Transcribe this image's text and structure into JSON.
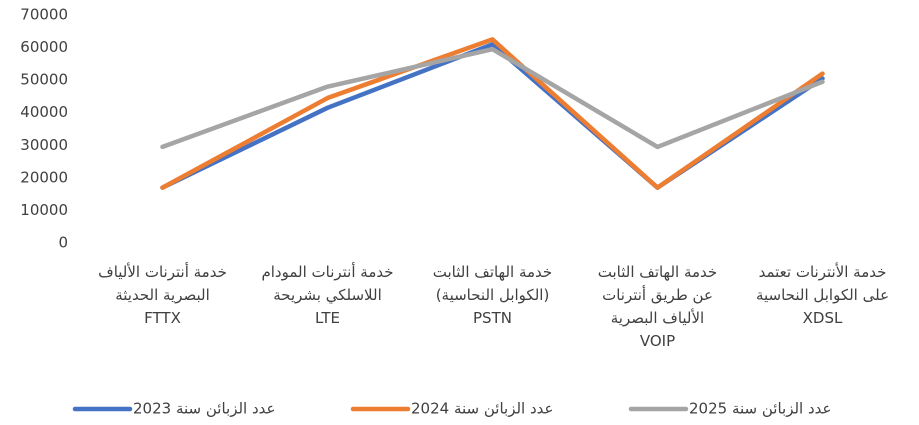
{
  "chart_data": {
    "type": "line",
    "categories": [
      "خدمة أنترنات الألياف\nالبصرية الحديثة\nFTTX",
      "خدمة أنترنات المودام\nاللاسلكي بشريحة\nLTE",
      "خدمة الهاتف الثابت\n(الكوابل النحاسية)\nPSTN",
      "خدمة الهاتف الثابت\nعن طريق أنترنات\nالألياف البصرية\nVOIP",
      "خدمة الأنترنات تعتمد\nعلى الكوابل النحاسية\nXDSL"
    ],
    "series": [
      {
        "name": "عدد الزبائن سنة 2023",
        "color": "#4472c4",
        "values": [
          17000,
          41500,
          61000,
          17000,
          50500
        ]
      },
      {
        "name": "عدد الزبائن سنة 2024",
        "color": "#ed7d31",
        "values": [
          17000,
          44500,
          62500,
          17000,
          52000
        ]
      },
      {
        "name": "عدد الزبائن سنة 2025",
        "color": "#a5a5a5",
        "values": [
          29500,
          48000,
          59500,
          29500,
          49500
        ]
      }
    ],
    "ylim": [
      0,
      70000
    ],
    "yticks": [
      0,
      10000,
      20000,
      30000,
      40000,
      50000,
      60000,
      70000
    ],
    "grid": false
  }
}
